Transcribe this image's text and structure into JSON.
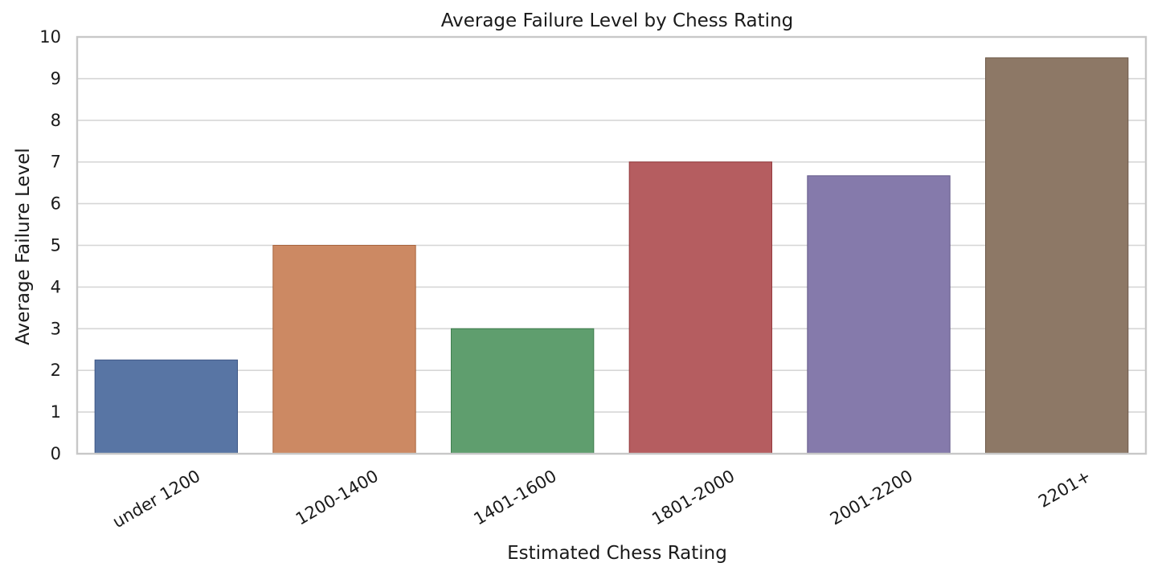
{
  "chart_data": {
    "type": "bar",
    "title": "Average Failure Level by Chess Rating",
    "xlabel": "Estimated Chess Rating",
    "ylabel": "Average Failure Level",
    "categories": [
      "under 1200",
      "1200-1400",
      "1401-1600",
      "1801-2000",
      "2001-2200",
      "2201+"
    ],
    "values": [
      2.25,
      5.0,
      3.0,
      7.0,
      6.67,
      9.5
    ],
    "colors": [
      "#5875a4",
      "#cc8963",
      "#5f9e6e",
      "#b55d60",
      "#857aab",
      "#8d7866"
    ],
    "edge_colors": [
      "#3d5685",
      "#a8653e",
      "#3f7e4e",
      "#94393d",
      "#645a8a",
      "#6c5848"
    ],
    "ylim": [
      0,
      10
    ],
    "yticks": [
      "0",
      "1",
      "2",
      "3",
      "4",
      "5",
      "6",
      "7",
      "8",
      "9",
      "10"
    ],
    "grid": "horizontal",
    "xtick_rotation": -30
  }
}
